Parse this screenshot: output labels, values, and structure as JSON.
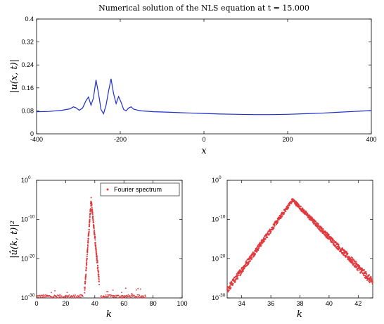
{
  "chart_data": [
    {
      "type": "line",
      "title": "Numerical solution of the NLS equation at t = 15.000",
      "xlabel": "x",
      "ylabel": "|u(x, t)|",
      "xlim": [
        -400,
        400
      ],
      "ylim": [
        0,
        0.4
      ],
      "xticks": [
        "-400",
        "-200",
        "0",
        "200",
        "400"
      ],
      "yticks": [
        "0",
        "0.08",
        "0.16",
        "0.24",
        "0.32",
        "0.4"
      ],
      "color": "#1f2fcf",
      "series": [
        {
          "x": [
            -400,
            -370,
            -340,
            -320,
            -312,
            -305,
            -298,
            -290,
            -282,
            -276,
            -270,
            -264,
            -258,
            -252,
            -246,
            -240,
            -234,
            -228,
            -222,
            -216,
            -210,
            -204,
            -198,
            -192,
            -186,
            -180,
            -174,
            -168,
            -160,
            -150,
            -120,
            -80,
            -40,
            0,
            40,
            80,
            120,
            160,
            200,
            240,
            280,
            320,
            360,
            400
          ],
          "y": [
            0.077,
            0.078,
            0.082,
            0.087,
            0.094,
            0.09,
            0.082,
            0.09,
            0.115,
            0.128,
            0.1,
            0.125,
            0.188,
            0.14,
            0.085,
            0.07,
            0.1,
            0.148,
            0.192,
            0.14,
            0.105,
            0.13,
            0.11,
            0.085,
            0.08,
            0.09,
            0.094,
            0.086,
            0.083,
            0.08,
            0.077,
            0.075,
            0.073,
            0.071,
            0.069,
            0.068,
            0.067,
            0.067,
            0.068,
            0.07,
            0.072,
            0.075,
            0.078,
            0.081
          ]
        }
      ]
    },
    {
      "type": "scatter",
      "ylabel": "|û(k, t)|²",
      "xlabel": "k",
      "xlim": [
        0,
        100
      ],
      "ylog": true,
      "ylim_exp": [
        -30,
        0
      ],
      "xticks": [
        "0",
        "20",
        "40",
        "60",
        "80",
        "100"
      ],
      "yticks": [
        "10",
        "10",
        "10",
        "10"
      ],
      "ytick_exps": [
        "0",
        "-10",
        "-20",
        "-30"
      ],
      "legend": "Fourier spectrum",
      "legend_position": "top-right",
      "color": "#e0393d",
      "peak_k": 37.5,
      "peak_exp": -5,
      "spectrum_range_k": [
        33,
        43
      ],
      "noise_floor_exp": -30,
      "noise_k_range": [
        0,
        75
      ]
    },
    {
      "type": "scatter",
      "xlabel": "k",
      "xlim": [
        33,
        43
      ],
      "ylog": true,
      "ylim_exp": [
        -30,
        0
      ],
      "xticks": [
        "34",
        "36",
        "38",
        "40",
        "42"
      ],
      "yticks": [
        "10",
        "10",
        "10",
        "10"
      ],
      "ytick_exps": [
        "0",
        "-10",
        "-20",
        "-30"
      ],
      "color": "#e0393d",
      "peak_k": 37.5,
      "peak_exp": -5,
      "left_exp": -28,
      "right_exp": -26
    }
  ]
}
